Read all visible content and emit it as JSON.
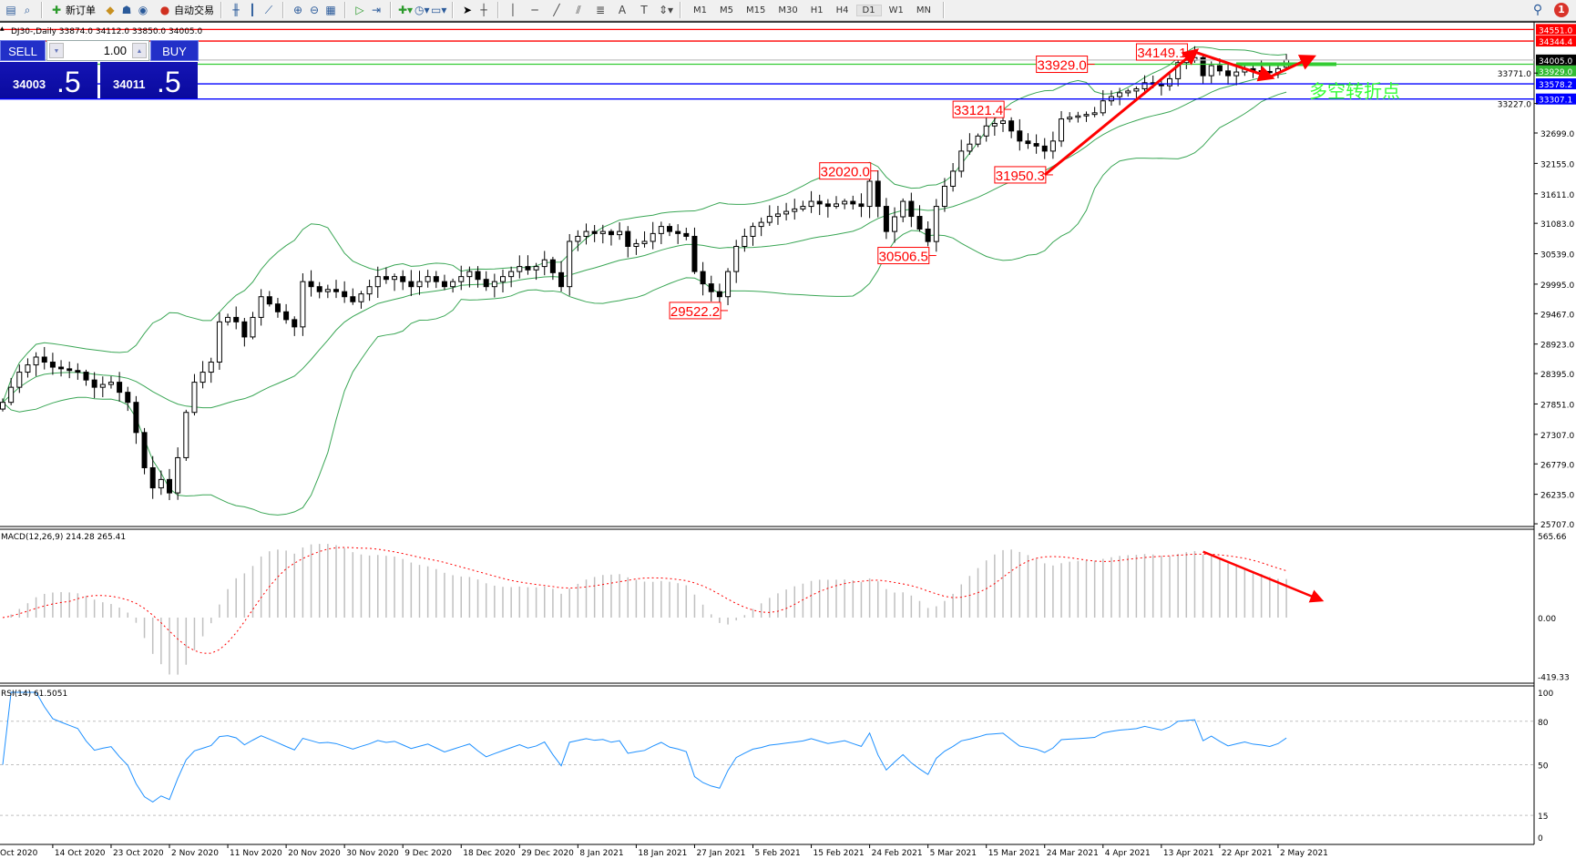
{
  "toolbar": {
    "new_order_label": "新订单",
    "auto_trading_label": "自动交易",
    "timeframes": [
      "M1",
      "M5",
      "M15",
      "M30",
      "H1",
      "H4",
      "D1",
      "W1",
      "MN"
    ],
    "active_timeframe": "D1",
    "notification_count": "1",
    "icons": [
      "new-chart-icon",
      "profiles-icon",
      "new-order-icon",
      "metaeditor-icon",
      "navigator-icon",
      "signals-icon",
      "auto-trading-icon",
      "bar-chart-icon",
      "candlestick-icon",
      "line-chart-icon",
      "zoom-in-icon",
      "zoom-out-icon",
      "tile-windows-icon",
      "autoscroll-icon",
      "chart-shift-icon",
      "indicators-icon",
      "periods-icon",
      "templates-icon",
      "cursor-icon",
      "crosshair-icon",
      "vertical-line-icon",
      "horizontal-line-icon",
      "trendline-icon",
      "equidistant-channel-icon",
      "fibonacci-icon",
      "text-icon",
      "text-label-icon",
      "arrows-icon",
      "search-icon",
      "notification-icon"
    ]
  },
  "chart_header": "DJ30-,Daily  33874.0 34112.0 33850.0 34005.0",
  "trade_panel": {
    "sell_label": "SELL",
    "buy_label": "BUY",
    "lot": "1.00",
    "sell_price_main": "34003",
    "sell_price_frac": ".5",
    "buy_price_main": "34011",
    "buy_price_frac": ".5"
  },
  "annotation_text": "多空转折点",
  "colors": {
    "bands": "#3aa655",
    "hline_red": "#ff0000",
    "hline_green": "#33cc33",
    "hline_blue": "#0000ff",
    "annotation": "#ff0000",
    "macd_hist": "#c0c0c0",
    "macd_signal": "#ff0000",
    "rsi": "#1e90ff",
    "annotation_text": "#33ff33"
  },
  "chart_data": [
    {
      "type": "candlestick",
      "symbol": "DJ30-",
      "timeframe": "Daily",
      "indicator": "Bands(20,2)",
      "ylim": [
        25707.0,
        34551.0
      ],
      "y_ticks": [
        "33771.0",
        "33227.0",
        "32699.0",
        "32155.0",
        "31611.0",
        "31083.0",
        "30539.0",
        "29995.0",
        "29467.0",
        "28923.0",
        "28395.0",
        "27851.0",
        "27307.0",
        "26779.0",
        "26235.0",
        "25707.0"
      ],
      "x_ticks": [
        {
          "label": "Oct 2020",
          "bar": -1
        },
        {
          "label": "14 Oct 2020",
          "bar": 6
        },
        {
          "label": "23 Oct 2020",
          "bar": 13
        },
        {
          "label": "2 Nov 2020",
          "bar": 20
        },
        {
          "label": "11 Nov 2020",
          "bar": 27
        },
        {
          "label": "20 Nov 2020",
          "bar": 34
        },
        {
          "label": "30 Nov 2020",
          "bar": 41
        },
        {
          "label": "9 Dec 2020",
          "bar": 48
        },
        {
          "label": "18 Dec 2020",
          "bar": 55
        },
        {
          "label": "29 Dec 2020",
          "bar": 62
        },
        {
          "label": "8 Jan 2021",
          "bar": 69
        },
        {
          "label": "18 Jan 2021",
          "bar": 76
        },
        {
          "label": "27 Jan 2021",
          "bar": 83
        },
        {
          "label": "5 Feb 2021",
          "bar": 90
        },
        {
          "label": "15 Feb 2021",
          "bar": 97
        },
        {
          "label": "24 Feb 2021",
          "bar": 104
        },
        {
          "label": "5 Mar 2021",
          "bar": 111
        },
        {
          "label": "15 Mar 2021",
          "bar": 118
        },
        {
          "label": "24 Mar 2021",
          "bar": 125
        },
        {
          "label": "4 Apr 2021",
          "bar": 132
        },
        {
          "label": "13 Apr 2021",
          "bar": 139
        },
        {
          "label": "22 Apr 2021",
          "bar": 146
        },
        {
          "label": "2 May 2021",
          "bar": 153
        }
      ],
      "closes": [
        27880,
        28150,
        28420,
        28550,
        28690,
        28600,
        28510,
        28480,
        28450,
        28420,
        28280,
        28150,
        28200,
        28240,
        28060,
        27880,
        27340,
        26710,
        26350,
        26500,
        26260,
        26890,
        27700,
        28240,
        28420,
        28600,
        29320,
        29400,
        29320,
        29050,
        29400,
        29770,
        29640,
        29500,
        29360,
        29230,
        30040,
        29950,
        29860,
        29900,
        29860,
        29770,
        29680,
        29820,
        29950,
        30130,
        30080,
        30130,
        30040,
        29950,
        30040,
        30130,
        30040,
        29950,
        30040,
        30130,
        30220,
        30080,
        29950,
        30040,
        30130,
        30220,
        30310,
        30250,
        30310,
        30430,
        30200,
        29950,
        30760,
        30850,
        30937,
        30900,
        30937,
        30880,
        30937,
        30670,
        30720,
        30760,
        30900,
        31027,
        30937,
        30900,
        30850,
        30220,
        30000,
        29860,
        29770,
        30220,
        30670,
        30850,
        31027,
        31100,
        31207,
        31250,
        31296,
        31340,
        31386,
        31476,
        31430,
        31386,
        31430,
        31476,
        31430,
        31386,
        31836,
        31386,
        30937,
        31200,
        31476,
        31207,
        30980,
        30757,
        31386,
        31746,
        32016,
        32375,
        32500,
        32645,
        32825,
        32870,
        32915,
        32735,
        32555,
        32510,
        32465,
        32375,
        32555,
        32950,
        32980,
        33005,
        33030,
        33060,
        33274,
        33350,
        33418,
        33450,
        33490,
        33598,
        33570,
        33544,
        33670,
        33958,
        34000,
        34048,
        33724,
        33904,
        33810,
        33724,
        33790,
        33850,
        33814,
        33800,
        33778,
        33850,
        34005
      ],
      "last_bar": {
        "open": 33874.0,
        "high": 34112.0,
        "low": 33850.0,
        "close": 34005.0
      },
      "horizontal_lines": [
        {
          "price": 34551.0,
          "label": "34551.0",
          "color": "#ff0000",
          "label_bg": "#ff0000"
        },
        {
          "price": 34344.4,
          "label": "34344.4",
          "color": "#ff0000",
          "label_bg": "#ff0000"
        },
        {
          "price": 34005.0,
          "label": "34005.0",
          "color": "#c0c0c0",
          "label_bg": "#000000"
        },
        {
          "price": 33929.0,
          "label": "33929.0",
          "color": "#33cc33",
          "label_bg": "#33bb33"
        },
        {
          "price": 33578.2,
          "label": "33578.2",
          "color": "#0000ff",
          "label_bg": "#0000ff"
        },
        {
          "price": 33307.1,
          "label": "33307.1",
          "color": "#0000ff",
          "label_bg": "#0000ff"
        }
      ],
      "price_labels": [
        {
          "text": "34149.1",
          "bar": 143,
          "price": 34149.1
        },
        {
          "text": "33929.0",
          "bar": 131,
          "price": 33929.0
        },
        {
          "text": "33121.4",
          "bar": 121,
          "price": 33121.4
        },
        {
          "text": "32020.0",
          "bar": 105,
          "price": 32020.0
        },
        {
          "text": "31950.3",
          "bar": 126,
          "price": 31950.3
        },
        {
          "text": "30506.5",
          "bar": 112,
          "price": 30506.5
        },
        {
          "text": "29522.2",
          "bar": 87,
          "price": 29522.2
        }
      ],
      "arrows": [
        {
          "from": [
            125,
            31950
          ],
          "to": [
            143,
            34149
          ]
        },
        {
          "from": [
            143,
            34149
          ],
          "to": [
            152,
            33700
          ]
        },
        {
          "from": [
            152,
            33700
          ],
          "to": [
            157,
            34048
          ]
        }
      ]
    },
    {
      "type": "macd",
      "title": "MACD(12,26,9) 214.28 265.41",
      "params": [
        12,
        26,
        9
      ],
      "ylim": [
        -419.33,
        565.66
      ],
      "y_ticks": [
        "565.66",
        "0.00",
        "-419.33"
      ],
      "arrows": [
        {
          "from": [
            144,
            455
          ],
          "to": [
            158,
            124
          ]
        }
      ]
    },
    {
      "type": "rsi",
      "title": "RSI(14) 61.5051",
      "period": 14,
      "ylim": [
        0,
        100
      ],
      "y_ticks": [
        "100",
        "80",
        "50",
        "15",
        "0"
      ],
      "levels": [
        80,
        50,
        15
      ]
    }
  ]
}
